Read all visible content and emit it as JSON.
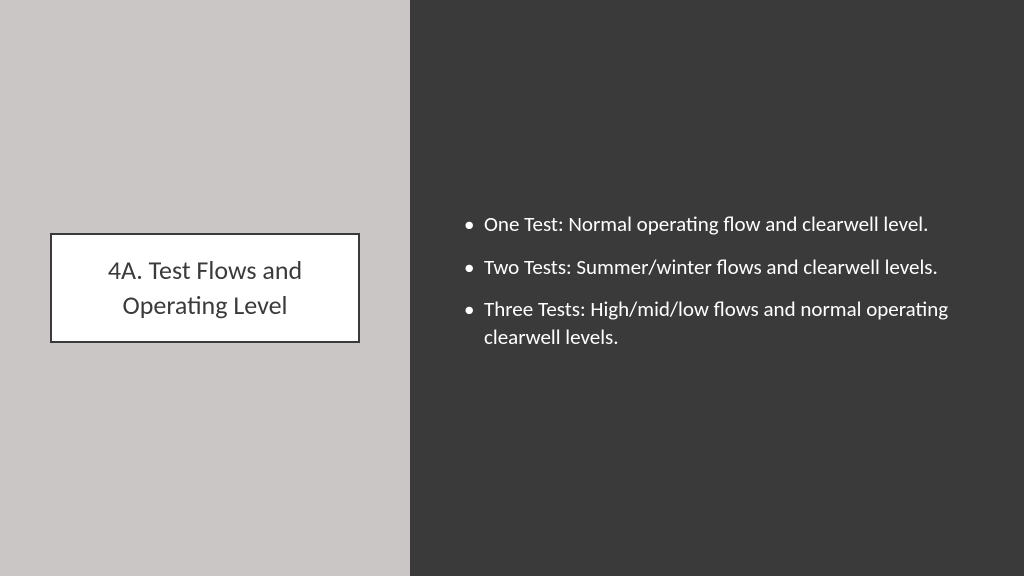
{
  "leftPanel": {
    "backgroundColor": "#cac6c6",
    "titleBox": {
      "backgroundColor": "#ffffff",
      "borderColor": "#3b3a3a",
      "textColor": "#3b3a3a",
      "text": "4A. Test Flows and Operating Level"
    }
  },
  "rightPanel": {
    "backgroundColor": "#3b3a3a",
    "textColor": "#ffffff",
    "bullets": [
      "One Test:  Normal operating flow and clearwell level.",
      "Two Tests: Summer/winter flows and clearwell levels.",
      "Three Tests: High/mid/low flows and normal operating clearwell levels."
    ]
  }
}
